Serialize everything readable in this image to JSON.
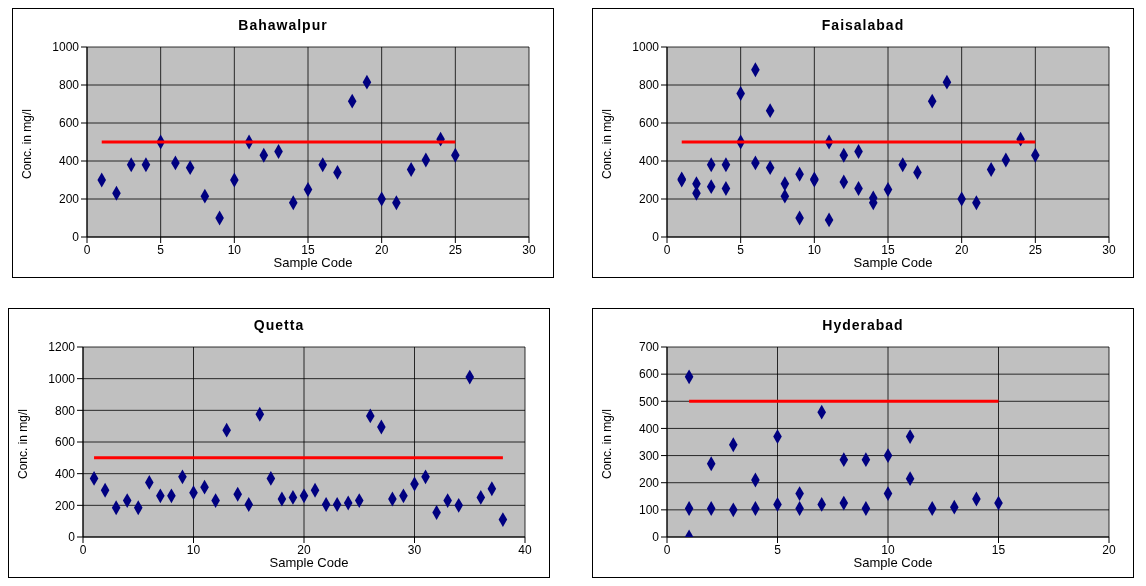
{
  "chart_data": [
    {
      "type": "scatter",
      "title": "Bahawalpur",
      "xlabel": "Sample Code",
      "ylabel": "Conc. in mg/l",
      "xlim": [
        0,
        30
      ],
      "xticks": [
        0,
        5,
        10,
        15,
        20,
        25,
        30
      ],
      "ylim": [
        0,
        1000
      ],
      "yticks": [
        0,
        200,
        400,
        600,
        800,
        1000
      ],
      "grid": true,
      "series": [
        {
          "marker": "diamond",
          "color": "#000080",
          "x": [
            1,
            2,
            3,
            4,
            5,
            6,
            7,
            8,
            9,
            10,
            11,
            12,
            13,
            14,
            15,
            16,
            17,
            18,
            19,
            20,
            21,
            22,
            23,
            24,
            25
          ],
          "values": [
            300,
            230,
            380,
            380,
            500,
            390,
            365,
            215,
            100,
            300,
            500,
            430,
            450,
            180,
            250,
            380,
            340,
            715,
            815,
            200,
            180,
            355,
            405,
            515,
            430
          ]
        },
        {
          "type": "line",
          "marker": "none",
          "color": "#ff0000",
          "x": [
            1,
            25
          ],
          "values": [
            500,
            500
          ]
        }
      ]
    },
    {
      "type": "scatter",
      "title": "Faisalabad",
      "xlabel": "Sample Code",
      "ylabel": "Conc. in mg/l",
      "xlim": [
        0,
        30
      ],
      "xticks": [
        0,
        5,
        10,
        15,
        20,
        25,
        30
      ],
      "ylim": [
        0,
        1000
      ],
      "yticks": [
        0,
        200,
        400,
        600,
        800,
        1000
      ],
      "grid": true,
      "series": [
        {
          "marker": "diamond",
          "color": "#000080",
          "x": [
            1,
            1,
            2,
            2,
            3,
            3,
            4,
            4,
            5,
            5,
            6,
            6,
            7,
            7,
            8,
            8,
            9,
            9,
            10,
            10,
            11,
            11,
            12,
            12,
            13,
            13,
            14,
            14,
            15,
            16,
            17,
            18,
            19,
            20,
            21,
            22,
            23,
            24,
            25
          ],
          "values": [
            305,
            300,
            280,
            230,
            380,
            265,
            380,
            255,
            755,
            500,
            880,
            390,
            665,
            365,
            280,
            215,
            330,
            100,
            305,
            300,
            500,
            90,
            430,
            290,
            450,
            255,
            205,
            180,
            250,
            380,
            340,
            715,
            815,
            200,
            180,
            355,
            405,
            515,
            430
          ]
        },
        {
          "type": "line",
          "marker": "none",
          "color": "#ff0000",
          "x": [
            1,
            25
          ],
          "values": [
            500,
            500
          ]
        }
      ]
    },
    {
      "type": "scatter",
      "title": "Quetta",
      "xlabel": "Sample Code",
      "ylabel": "Conc. in mg/l",
      "xlim": [
        0,
        40
      ],
      "xticks": [
        0,
        10,
        20,
        30,
        40
      ],
      "ylim": [
        0,
        1200
      ],
      "yticks": [
        0,
        200,
        400,
        600,
        800,
        1000,
        1200
      ],
      "grid": true,
      "series": [
        {
          "marker": "diamond",
          "color": "#000080",
          "x": [
            1,
            2,
            3,
            4,
            5,
            6,
            7,
            8,
            9,
            10,
            11,
            12,
            13,
            14,
            15,
            16,
            17,
            18,
            19,
            20,
            21,
            22,
            23,
            24,
            25,
            26,
            27,
            28,
            29,
            30,
            31,
            32,
            33,
            34,
            35,
            36,
            37,
            38
          ],
          "values": [
            370,
            295,
            185,
            230,
            185,
            345,
            260,
            260,
            380,
            280,
            315,
            230,
            675,
            270,
            205,
            775,
            370,
            240,
            250,
            260,
            295,
            205,
            205,
            215,
            230,
            765,
            695,
            240,
            260,
            335,
            380,
            155,
            230,
            200,
            1010,
            250,
            305,
            110
          ]
        },
        {
          "type": "line",
          "marker": "none",
          "color": "#ff0000",
          "x": [
            1,
            38
          ],
          "values": [
            500,
            500
          ]
        }
      ]
    },
    {
      "type": "scatter",
      "title": "Hyderabad",
      "xlabel": "Sample Code",
      "ylabel": "Conc. in mg/l",
      "xlim": [
        0,
        20
      ],
      "xticks": [
        0,
        5,
        10,
        15,
        20
      ],
      "ylim": [
        0,
        700
      ],
      "yticks": [
        0,
        100,
        200,
        300,
        400,
        500,
        600,
        700
      ],
      "grid": true,
      "series": [
        {
          "marker": "diamond",
          "color": "#000080",
          "x": [
            1,
            1,
            1,
            2,
            2,
            3,
            3,
            4,
            4,
            5,
            5,
            6,
            6,
            7,
            7,
            8,
            8,
            9,
            9,
            10,
            10,
            11,
            11,
            12,
            13,
            14,
            15
          ],
          "values": [
            590,
            105,
            0,
            270,
            105,
            340,
            100,
            210,
            105,
            370,
            120,
            160,
            105,
            460,
            120,
            285,
            125,
            285,
            105,
            300,
            160,
            370,
            215,
            105,
            110,
            140,
            125
          ]
        },
        {
          "type": "line",
          "marker": "none",
          "color": "#ff0000",
          "x": [
            1,
            15
          ],
          "values": [
            500,
            500
          ]
        }
      ]
    }
  ]
}
